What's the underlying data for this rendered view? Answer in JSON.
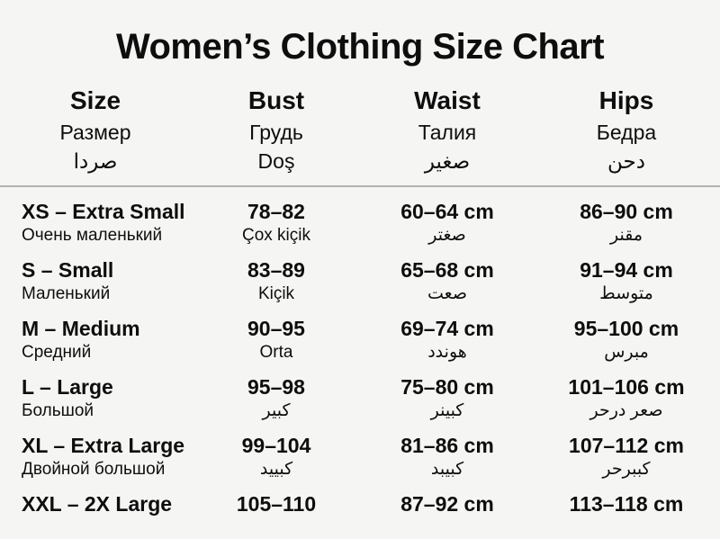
{
  "title": "Women’s Clothing Size Chart",
  "colors": {
    "background": "#f5f5f3",
    "text": "#0e0e0e",
    "divider": "#b3b1ae"
  },
  "table": {
    "columns": [
      {
        "en": "Size",
        "ru": "Размер",
        "l3": "صردا"
      },
      {
        "en": "Bust",
        "ru": "Грудь",
        "l3": "Doş"
      },
      {
        "en": "Waist",
        "ru": "Талия",
        "l3": "صغير"
      },
      {
        "en": "Hips",
        "ru": "Бедра",
        "l3": "دحن"
      }
    ],
    "rows": [
      {
        "size": "XS – Extra Small",
        "size_sub": "Очень маленький",
        "bust": "78–82",
        "bust_sub": "Çox kiçik",
        "waist": "60–64 cm",
        "waist_sub": "صغتر",
        "hips": "86–90 cm",
        "hips_sub": "مقنر"
      },
      {
        "size": "S – Small",
        "size_sub": "Маленький",
        "bust": "83–89",
        "bust_sub": "Kiçik",
        "waist": "65–68 cm",
        "waist_sub": "صعت",
        "hips": "91–94 cm",
        "hips_sub": "متوسط"
      },
      {
        "size": "M – Medium",
        "size_sub": "Средний",
        "bust": "90–95",
        "bust_sub": "Orta",
        "waist": "69–74 cm",
        "waist_sub": "هوندد",
        "hips": "95–100 cm",
        "hips_sub": "مبرس"
      },
      {
        "size": "L – Large",
        "size_sub": "Большой",
        "bust": "95–98",
        "bust_sub": "كبير",
        "waist": "75–80 cm",
        "waist_sub": "كبينر",
        "hips": "101–106 cm",
        "hips_sub": "صعر درحر"
      },
      {
        "size": "XL – Extra Large",
        "size_sub": "Двойной большой",
        "bust": "99–104",
        "bust_sub": "كبييد",
        "waist": "81–86 cm",
        "waist_sub": "كبيبد",
        "hips": "107–112 cm",
        "hips_sub": "كببرحر"
      },
      {
        "size": "XXL – 2X Large",
        "size_sub": "",
        "bust": "105–110",
        "bust_sub": "",
        "waist": "87–92 cm",
        "waist_sub": "",
        "hips": "113–118 cm",
        "hips_sub": ""
      }
    ]
  }
}
